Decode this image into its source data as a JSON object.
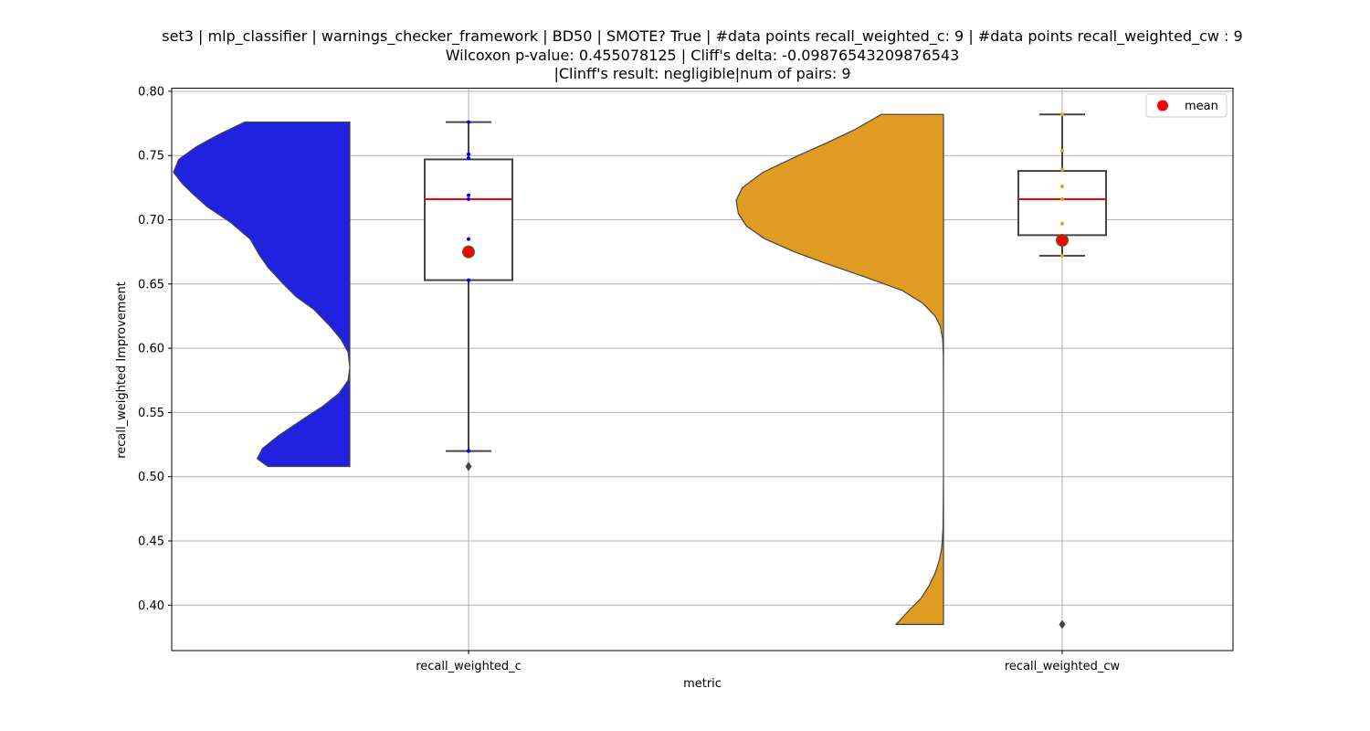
{
  "chart_data": {
    "type": "violin",
    "title_lines": [
      "set3 | mlp_classifier | warnings_checker_framework | BD50 | SMOTE? True | #data points recall_weighted_c: 9 | #data points recall_weighted_cw : 9",
      "Wilcoxon p-value: 0.455078125 | Cliff's delta: -0.09876543209876543",
      "|Clinff's result: negligible|num of pairs: 9"
    ],
    "xlabel": "metric",
    "ylabel": "recall_weighted Improvement",
    "ylim": [
      0.365,
      0.803
    ],
    "yticks": [
      0.4,
      0.45,
      0.5,
      0.55,
      0.6,
      0.65,
      0.7,
      0.75,
      0.8
    ],
    "ytick_labels": [
      "0.40",
      "0.45",
      "0.50",
      "0.55",
      "0.60",
      "0.65",
      "0.70",
      "0.75",
      "0.80"
    ],
    "categories": [
      "recall_weighted_c",
      "recall_weighted_cw"
    ],
    "grid": true,
    "legend": {
      "placement": "upper right",
      "entries": [
        {
          "label": "mean",
          "color": "#ff0000"
        }
      ]
    },
    "series": [
      {
        "name": "recall_weighted_c",
        "color": "#2121e0",
        "point_color": "#0000ff",
        "violin_range": [
          0.508,
          0.776
        ],
        "density_profile": [
          [
            0.508,
            0.46
          ],
          [
            0.514,
            0.52
          ],
          [
            0.522,
            0.49
          ],
          [
            0.532,
            0.4
          ],
          [
            0.545,
            0.26
          ],
          [
            0.555,
            0.15
          ],
          [
            0.565,
            0.06
          ],
          [
            0.575,
            0.01
          ],
          [
            0.585,
            0.0
          ],
          [
            0.597,
            0.01
          ],
          [
            0.607,
            0.05
          ],
          [
            0.617,
            0.11
          ],
          [
            0.63,
            0.2
          ],
          [
            0.64,
            0.3
          ],
          [
            0.651,
            0.38
          ],
          [
            0.663,
            0.46
          ],
          [
            0.673,
            0.51
          ],
          [
            0.685,
            0.56
          ],
          [
            0.698,
            0.67
          ],
          [
            0.71,
            0.8
          ],
          [
            0.72,
            0.88
          ],
          [
            0.728,
            0.94
          ],
          [
            0.737,
            0.99
          ],
          [
            0.747,
            0.96
          ],
          [
            0.757,
            0.86
          ],
          [
            0.766,
            0.74
          ],
          [
            0.776,
            0.59
          ]
        ],
        "box": {
          "whisker_low": 0.52,
          "q1": 0.653,
          "median": 0.716,
          "q3": 0.747,
          "whisker_high": 0.776
        },
        "outliers": [
          0.508
        ],
        "mean": 0.675,
        "points": [
          0.52,
          0.653,
          0.685,
          0.716,
          0.719,
          0.748,
          0.751,
          0.776
        ]
      },
      {
        "name": "recall_weighted_cw",
        "color": "#e09c22",
        "point_color": "#e6a21a",
        "violin_range": [
          0.385,
          0.782
        ],
        "density_profile": [
          [
            0.385,
            0.23
          ],
          [
            0.39,
            0.2
          ],
          [
            0.397,
            0.16
          ],
          [
            0.405,
            0.11
          ],
          [
            0.415,
            0.07
          ],
          [
            0.425,
            0.04
          ],
          [
            0.435,
            0.02
          ],
          [
            0.445,
            0.008
          ],
          [
            0.46,
            0.002
          ],
          [
            0.5,
            0.0
          ],
          [
            0.56,
            0.0
          ],
          [
            0.595,
            0.001
          ],
          [
            0.607,
            0.004
          ],
          [
            0.617,
            0.015
          ],
          [
            0.625,
            0.04
          ],
          [
            0.635,
            0.1
          ],
          [
            0.645,
            0.2
          ],
          [
            0.655,
            0.37
          ],
          [
            0.665,
            0.55
          ],
          [
            0.675,
            0.72
          ],
          [
            0.685,
            0.86
          ],
          [
            0.695,
            0.95
          ],
          [
            0.705,
            0.99
          ],
          [
            0.715,
            1.0
          ],
          [
            0.725,
            0.97
          ],
          [
            0.737,
            0.87
          ],
          [
            0.75,
            0.7
          ],
          [
            0.76,
            0.56
          ],
          [
            0.77,
            0.43
          ],
          [
            0.782,
            0.3
          ]
        ],
        "box": {
          "whisker_low": 0.672,
          "q1": 0.688,
          "median": 0.716,
          "q3": 0.738,
          "whisker_high": 0.782
        },
        "outliers": [
          0.385
        ],
        "mean": 0.684,
        "points": [
          0.672,
          0.684,
          0.697,
          0.716,
          0.726,
          0.739,
          0.754,
          0.782
        ]
      }
    ]
  },
  "colors": {
    "box_edge": "#444444",
    "median_line": "#ff0000",
    "mean_fill": "#ff0000",
    "mean_edge": "#2e7d2e",
    "grid": "#b0b0b0"
  }
}
